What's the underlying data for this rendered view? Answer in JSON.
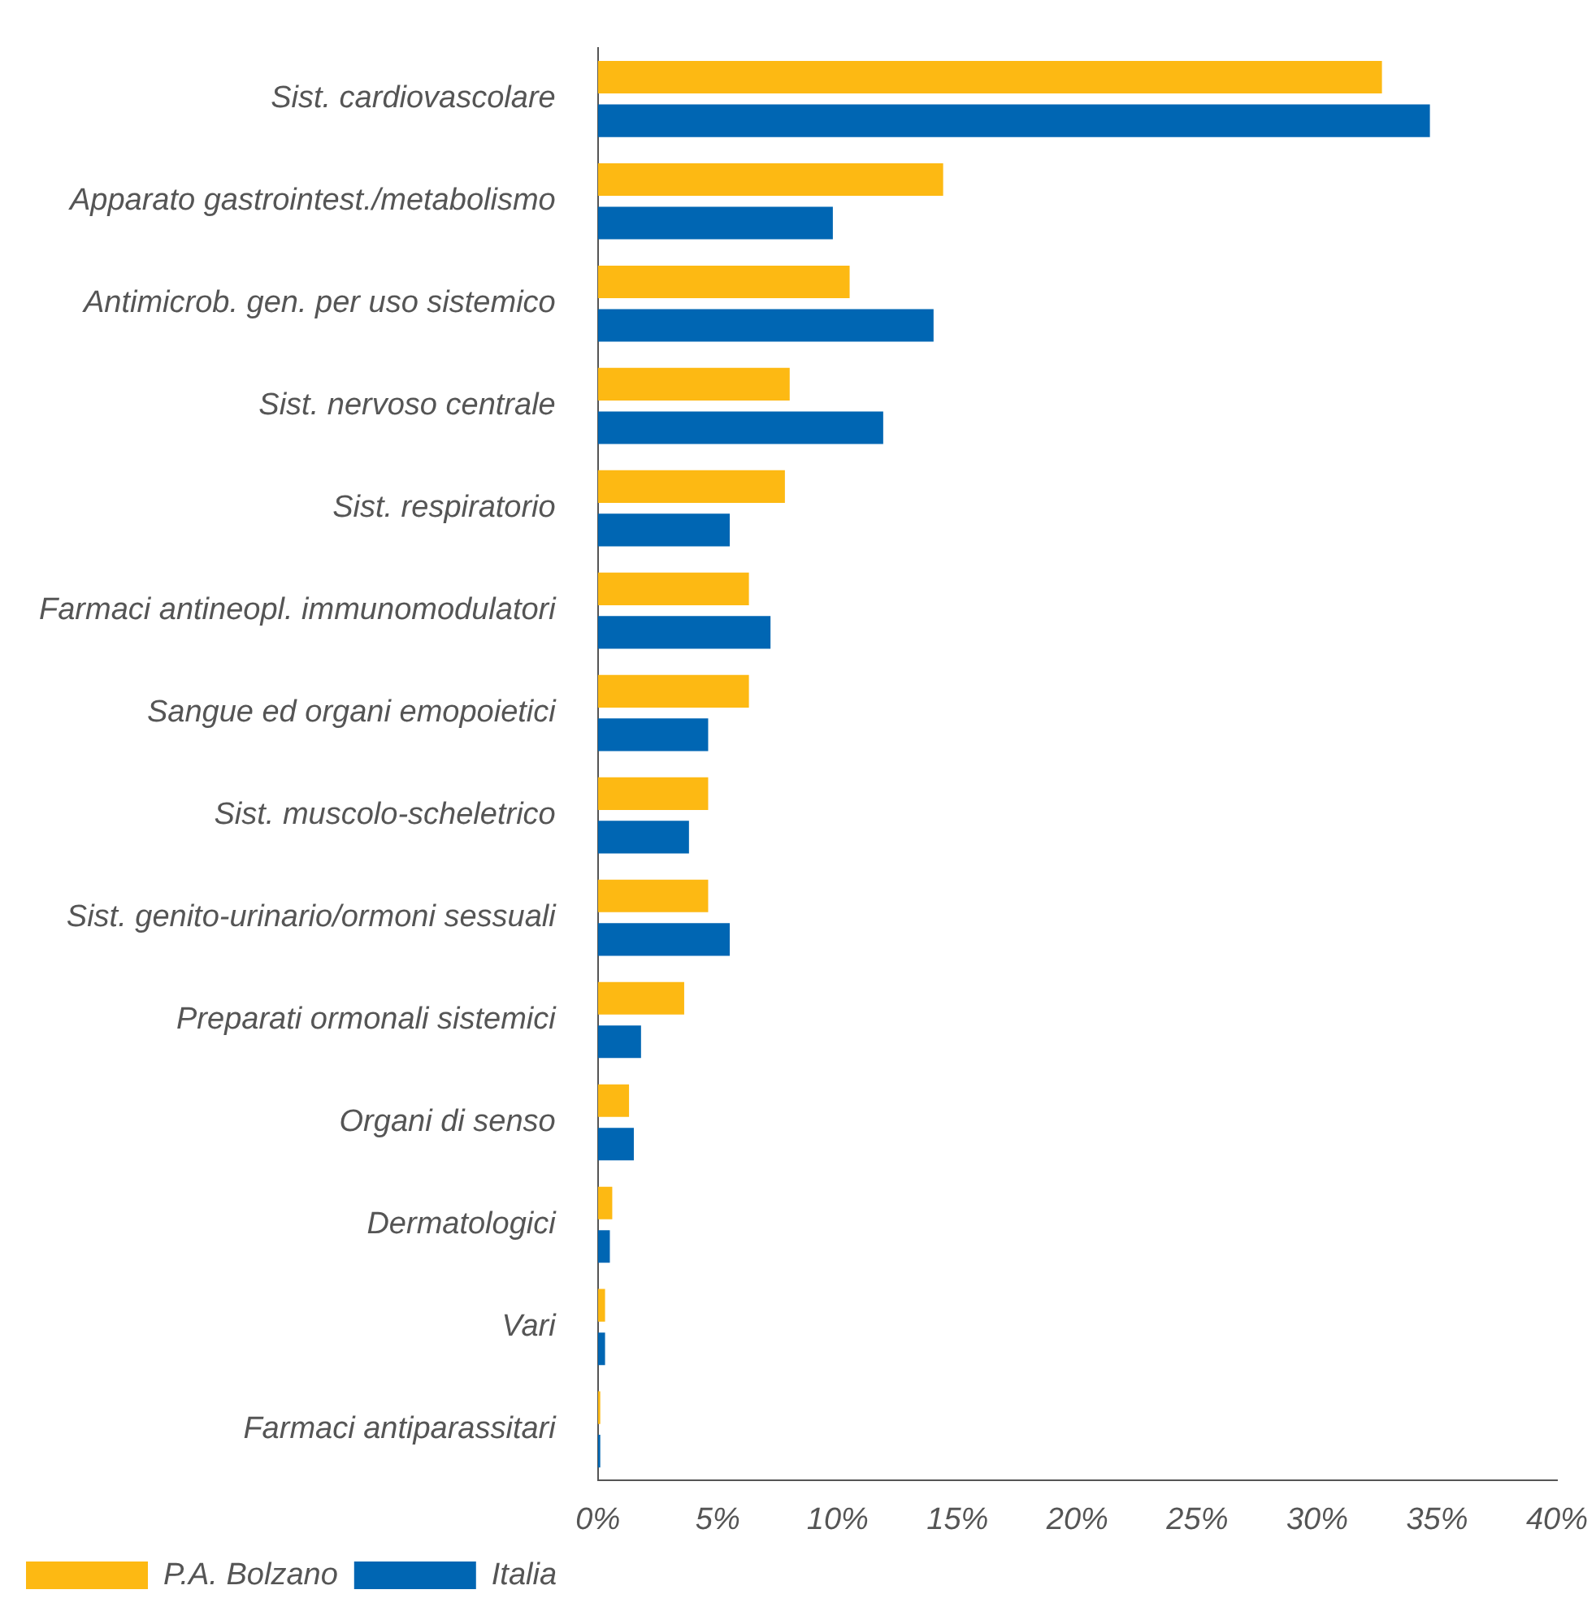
{
  "chart_data": {
    "type": "bar",
    "orientation": "horizontal",
    "legend": "bottom",
    "grid": false,
    "categories": [
      "Sist. cardiovascolare",
      "Apparato gastrointest./metabolismo",
      "Antimicrob. gen. per uso sistemico",
      "Sist. nervoso centrale",
      "Sist. respiratorio",
      "Farmaci antineopl. immunomodulatori",
      "Sangue ed organi emopoietici",
      "Sist. muscolo-scheletrico",
      "Sist. genito-urinario/ormoni sessuali",
      "Preparati ormonali sistemici",
      "Organi di senso",
      "Dermatologici",
      "Vari",
      "Farmaci antiparassitari"
    ],
    "series": [
      {
        "name": "P.A. Bolzano",
        "color": "#fdb913",
        "values": [
          32.7,
          14.4,
          10.5,
          8.0,
          7.8,
          6.3,
          6.3,
          4.6,
          4.6,
          3.6,
          1.3,
          0.6,
          0.3,
          0.1
        ]
      },
      {
        "name": "Italia",
        "color": "#0066b3",
        "values": [
          34.7,
          9.8,
          14.0,
          11.9,
          5.5,
          7.2,
          4.6,
          3.8,
          5.5,
          1.8,
          1.5,
          0.5,
          0.3,
          0.1
        ]
      }
    ],
    "xlim": [
      0,
      40
    ],
    "xticks": [
      {
        "value": 0,
        "label": "0%"
      },
      {
        "value": 5,
        "label": "5%"
      },
      {
        "value": 10,
        "label": "10%"
      },
      {
        "value": 15,
        "label": "15%"
      },
      {
        "value": 20,
        "label": "20%"
      },
      {
        "value": 25,
        "label": "25%"
      },
      {
        "value": 30,
        "label": "30%"
      },
      {
        "value": 35,
        "label": "35%"
      },
      {
        "value": 40,
        "label": "40%"
      }
    ]
  }
}
